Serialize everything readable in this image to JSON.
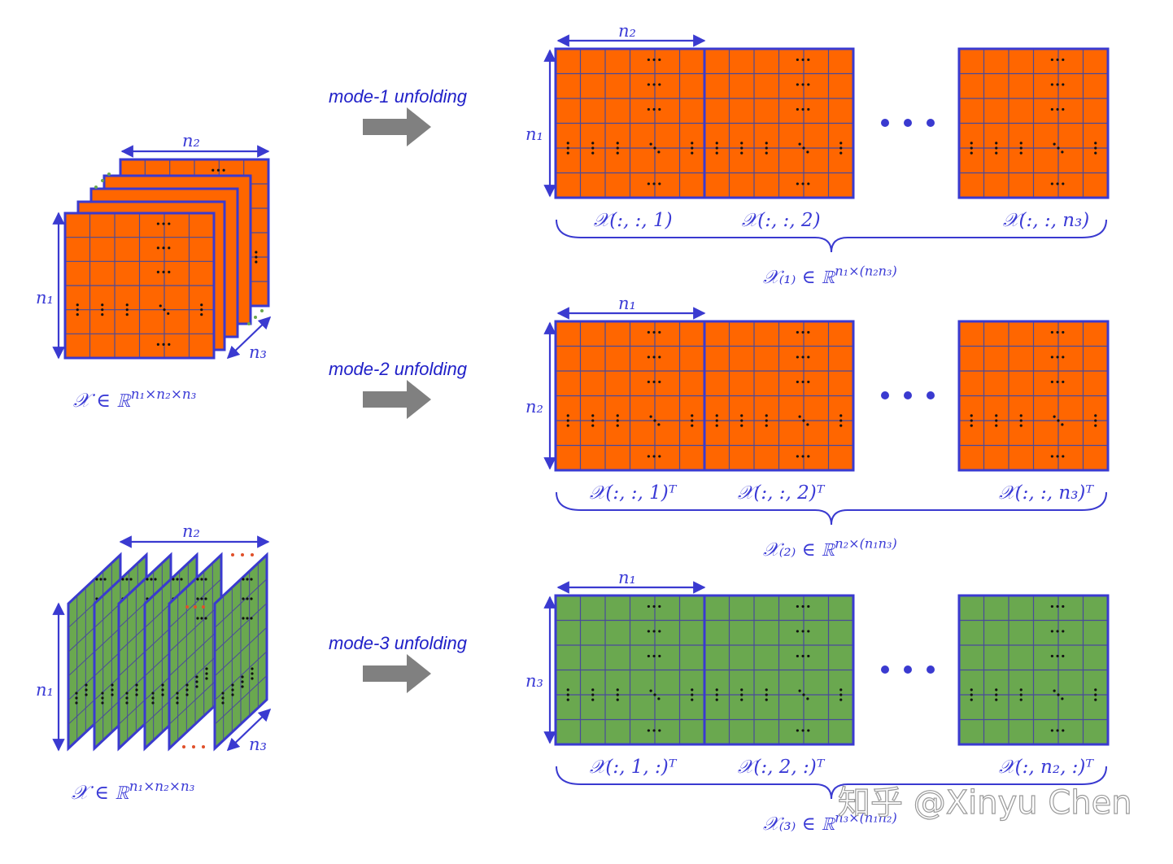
{
  "colors": {
    "orange": "#ff6600",
    "green": "#6aa84f",
    "border": "#3a3ad0",
    "grid": "#4a4a9a",
    "arrow": "#808080",
    "label": "#2b2bd0"
  },
  "tensors": {
    "orange": {
      "dim_top": "n₂",
      "dim_left": "n₁",
      "dim_depth": "n₃",
      "caption": "𝒳 ∈ ℝ^{n₁×n₂×n₃}"
    },
    "green": {
      "dim_top": "n₂",
      "dim_left": "n₁",
      "dim_depth": "n₃",
      "caption": "𝒳 ∈ ℝ^{n₁×n₂×n₃}"
    }
  },
  "unfoldings": [
    {
      "arrow_label": "mode-1 unfolding",
      "dim_top": "n₂",
      "dim_left": "n₁",
      "fill": "orange",
      "slices": [
        "𝒳(:, :, 1)",
        "𝒳(:, :, 2)",
        "𝒳(:, :, n₃)"
      ],
      "result": "𝒳₍₁₎ ∈ ℝ^{n₁×(n₂n₃)}"
    },
    {
      "arrow_label": "mode-2 unfolding",
      "dim_top": "n₁",
      "dim_left": "n₂",
      "fill": "orange",
      "slices": [
        "𝒳(:, :, 1)ᵀ",
        "𝒳(:, :, 2)ᵀ",
        "𝒳(:, :, n₃)ᵀ"
      ],
      "result": "𝒳₍₂₎ ∈ ℝ^{n₂×(n₁n₃)}"
    },
    {
      "arrow_label": "mode-3 unfolding",
      "dim_top": "n₁",
      "dim_left": "n₃",
      "fill": "green",
      "slices": [
        "𝒳(:, 1, :)ᵀ",
        "𝒳(:, 2, :)ᵀ",
        "𝒳(:, n₂, :)ᵀ"
      ],
      "result": "𝒳₍₃₎ ∈ ℝ^{n₃×(n₁n₂)}"
    }
  ],
  "watermark": "知乎 @Xinyu Chen"
}
